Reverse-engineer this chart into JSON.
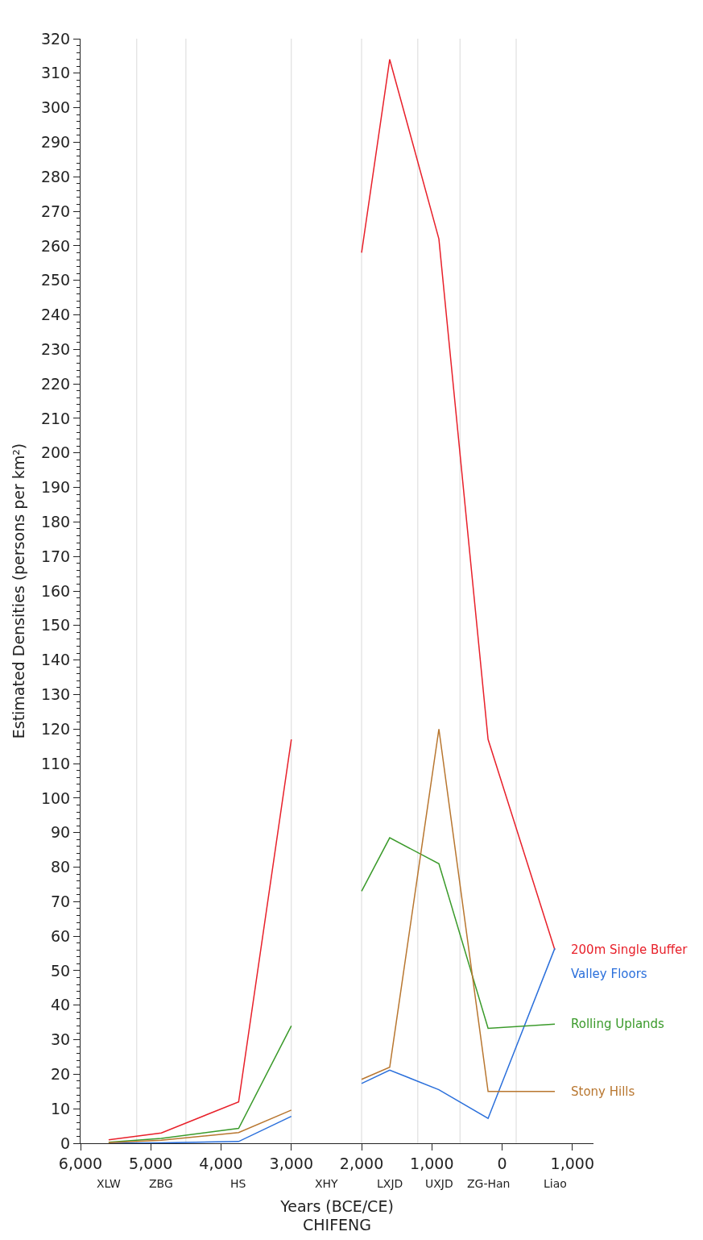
{
  "chart_data": {
    "type": "line",
    "title": "CHIFENG",
    "xlabel": "Years (BCE/CE)",
    "ylabel": "Estimated Densities (persons per km²)",
    "x": [
      -5600,
      -4850,
      -3750,
      -3000,
      -2500,
      -2000,
      -1600,
      -900,
      -200,
      750
    ],
    "series": [
      {
        "name": "200m Single Buffer",
        "color": "#e8202a",
        "values": [
          1,
          3,
          12,
          117,
          null,
          258,
          314,
          262,
          117,
          56
        ]
      },
      {
        "name": "Valley Floors",
        "color": "#2a6fdb",
        "values": [
          0,
          0.1,
          0.5,
          7.8,
          null,
          17.3,
          21.2,
          15.5,
          7.2,
          56.5
        ]
      },
      {
        "name": "Rolling Uplands",
        "color": "#3a9a2a",
        "values": [
          0.3,
          1.4,
          4.3,
          34,
          null,
          73,
          88.5,
          81,
          33.3,
          34.5
        ]
      },
      {
        "name": "Stony Hills",
        "color": "#b8762f",
        "values": [
          0.2,
          0.9,
          3.1,
          9.6,
          null,
          18.5,
          22,
          120,
          15,
          15
        ]
      }
    ],
    "xlim": [
      -6000,
      1300
    ],
    "xticks": [
      {
        "value": -6000,
        "label": "6,000"
      },
      {
        "value": -5000,
        "label": "5,000"
      },
      {
        "value": -4000,
        "label": "4,000"
      },
      {
        "value": -3000,
        "label": "3,000"
      },
      {
        "value": -2000,
        "label": "2,000"
      },
      {
        "value": -1000,
        "label": "1,000"
      },
      0,
      {
        "value": 1000,
        "label": "1,000"
      }
    ],
    "ylim": [
      0,
      320
    ],
    "yticks": [
      0,
      10,
      20,
      30,
      40,
      50,
      60,
      70,
      80,
      90,
      100,
      110,
      120,
      130,
      140,
      150,
      160,
      170,
      180,
      190,
      200,
      210,
      220,
      230,
      240,
      250,
      260,
      270,
      280,
      290,
      300,
      310,
      320
    ],
    "grid": false,
    "legend": false,
    "marker": "none",
    "line_style": "solid",
    "ref_lines": [
      {
        "axis": "x",
        "value": -5200,
        "color": "#d9d9d9"
      },
      {
        "axis": "x",
        "value": -4500,
        "color": "#d9d9d9"
      },
      {
        "axis": "x",
        "value": -3000,
        "color": "#d9d9d9"
      },
      {
        "axis": "x",
        "value": -2000,
        "color": "#d9d9d9"
      },
      {
        "axis": "x",
        "value": -1200,
        "color": "#d9d9d9"
      },
      {
        "axis": "x",
        "value": -600,
        "color": "#d9d9d9"
      },
      {
        "axis": "x",
        "value": 200,
        "color": "#d9d9d9"
      }
    ],
    "annotations": [
      "XLW",
      "ZBG",
      "HS",
      "XHY",
      "LXJD",
      "UXJD",
      "ZG-Han",
      "Liao"
    ]
  }
}
